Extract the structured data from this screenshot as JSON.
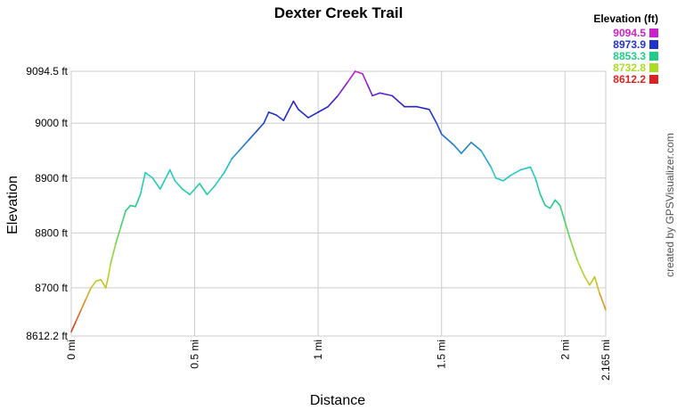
{
  "chart_data": {
    "type": "line",
    "title": "Dexter Creek Trail",
    "xlabel": "Distance",
    "ylabel": "Elevation",
    "xlim": [
      0,
      2.165
    ],
    "ylim": [
      8612.2,
      9094.5
    ],
    "x_ticks": [
      {
        "value": 0,
        "label": "0 mi"
      },
      {
        "value": 0.5,
        "label": "0.5 mi"
      },
      {
        "value": 1,
        "label": "1 mi"
      },
      {
        "value": 1.5,
        "label": "1.5 mi"
      },
      {
        "value": 2,
        "label": "2 mi"
      },
      {
        "value": 2.165,
        "label": "2.165 mi"
      }
    ],
    "y_ticks": [
      {
        "value": 8612.2,
        "label": "8612.2 ft"
      },
      {
        "value": 8700,
        "label": "8700 ft"
      },
      {
        "value": 8800,
        "label": "8800 ft"
      },
      {
        "value": 8900,
        "label": "8900 ft"
      },
      {
        "value": 9000,
        "label": "9000 ft"
      },
      {
        "value": 9094.5,
        "label": "9094.5 ft"
      }
    ],
    "grid": true,
    "legend": {
      "title": "Elevation (ft)",
      "placement": "top-right",
      "entries": [
        {
          "label": "9094.5",
          "color": "#cc22cc"
        },
        {
          "label": "8973.9",
          "color": "#2233cc"
        },
        {
          "label": "8853.3",
          "color": "#22cc88"
        },
        {
          "label": "8732.8",
          "color": "#aadd22"
        },
        {
          "label": "8612.2",
          "color": "#dd2222"
        }
      ]
    },
    "credit": "created by GPSVisualizer.com",
    "series": [
      {
        "x": [
          0,
          0.02,
          0.04,
          0.06,
          0.08,
          0.1,
          0.12,
          0.14,
          0.15,
          0.16,
          0.18,
          0.2,
          0.22,
          0.24,
          0.26,
          0.28,
          0.3,
          0.33,
          0.36,
          0.4,
          0.42,
          0.45,
          0.48,
          0.52,
          0.55,
          0.58,
          0.62,
          0.65,
          0.68,
          0.72,
          0.75,
          0.78,
          0.8,
          0.83,
          0.86,
          0.9,
          0.92,
          0.96,
          1.0,
          1.04,
          1.08,
          1.12,
          1.15,
          1.18,
          1.2,
          1.22,
          1.25,
          1.3,
          1.35,
          1.4,
          1.45,
          1.48,
          1.5,
          1.55,
          1.58,
          1.62,
          1.66,
          1.7,
          1.72,
          1.75,
          1.78,
          1.82,
          1.86,
          1.88,
          1.9,
          1.92,
          1.94,
          1.96,
          1.98,
          2.0,
          2.02,
          2.05,
          2.08,
          2.1,
          2.12,
          2.14,
          2.165
        ],
        "y": [
          8620,
          8640,
          8660,
          8680,
          8700,
          8712,
          8715,
          8700,
          8720,
          8745,
          8780,
          8810,
          8840,
          8850,
          8848,
          8870,
          8910,
          8900,
          8880,
          8915,
          8895,
          8880,
          8870,
          8890,
          8870,
          8885,
          8910,
          8935,
          8950,
          8970,
          8985,
          9000,
          9020,
          9015,
          9005,
          9040,
          9025,
          9010,
          9020,
          9030,
          9050,
          9075,
          9094.5,
          9090,
          9070,
          9050,
          9055,
          9050,
          9030,
          9030,
          9025,
          9000,
          8980,
          8960,
          8945,
          8965,
          8950,
          8920,
          8900,
          8895,
          8905,
          8915,
          8920,
          8900,
          8870,
          8850,
          8845,
          8860,
          8850,
          8820,
          8790,
          8750,
          8720,
          8705,
          8720,
          8690,
          8660
        ]
      }
    ]
  }
}
